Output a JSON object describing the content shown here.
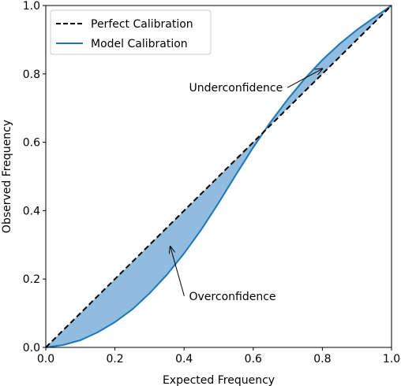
{
  "chart_data": {
    "type": "line",
    "title": "",
    "xlabel": "Expected Frequency",
    "ylabel": "Observed Frequency",
    "xlim": [
      0.0,
      1.0
    ],
    "ylim": [
      0.0,
      1.0
    ],
    "xticks": [
      "0.0",
      "0.2",
      "0.4",
      "0.6",
      "0.8",
      "1.0"
    ],
    "yticks": [
      "0.0",
      "0.2",
      "0.4",
      "0.6",
      "0.8",
      "1.0"
    ],
    "grid": false,
    "legend": {
      "placement": "upper-left",
      "entries": [
        "Perfect Calibration",
        "Model Calibration"
      ]
    },
    "series": [
      {
        "name": "Perfect Calibration",
        "style": "dashed",
        "color": "#000000",
        "x": [
          0.0,
          1.0
        ],
        "y": [
          0.0,
          1.0
        ]
      },
      {
        "name": "Model Calibration",
        "style": "solid",
        "color": "#1f77b4",
        "x": [
          0.0,
          0.05,
          0.1,
          0.15,
          0.2,
          0.25,
          0.3,
          0.35,
          0.4,
          0.45,
          0.5,
          0.55,
          0.6,
          0.65,
          0.7,
          0.75,
          0.8,
          0.85,
          0.9,
          0.95,
          1.0
        ],
        "y": [
          0.0,
          0.007,
          0.021,
          0.044,
          0.074,
          0.111,
          0.158,
          0.212,
          0.275,
          0.345,
          0.423,
          0.505,
          0.585,
          0.659,
          0.726,
          0.787,
          0.841,
          0.888,
          0.929,
          0.965,
          1.0
        ]
      }
    ],
    "fill_between": {
      "color": "#8fbcdf",
      "edge": "#1f77b4"
    },
    "annotations": [
      {
        "text": "Underconfidence",
        "text_at": [
          0.55,
          0.76
        ],
        "arrow_to": [
          0.8,
          0.815
        ]
      },
      {
        "text": "Overconfidence",
        "text_at": [
          0.54,
          0.15
        ],
        "arrow_to": [
          0.36,
          0.295
        ]
      }
    ]
  }
}
